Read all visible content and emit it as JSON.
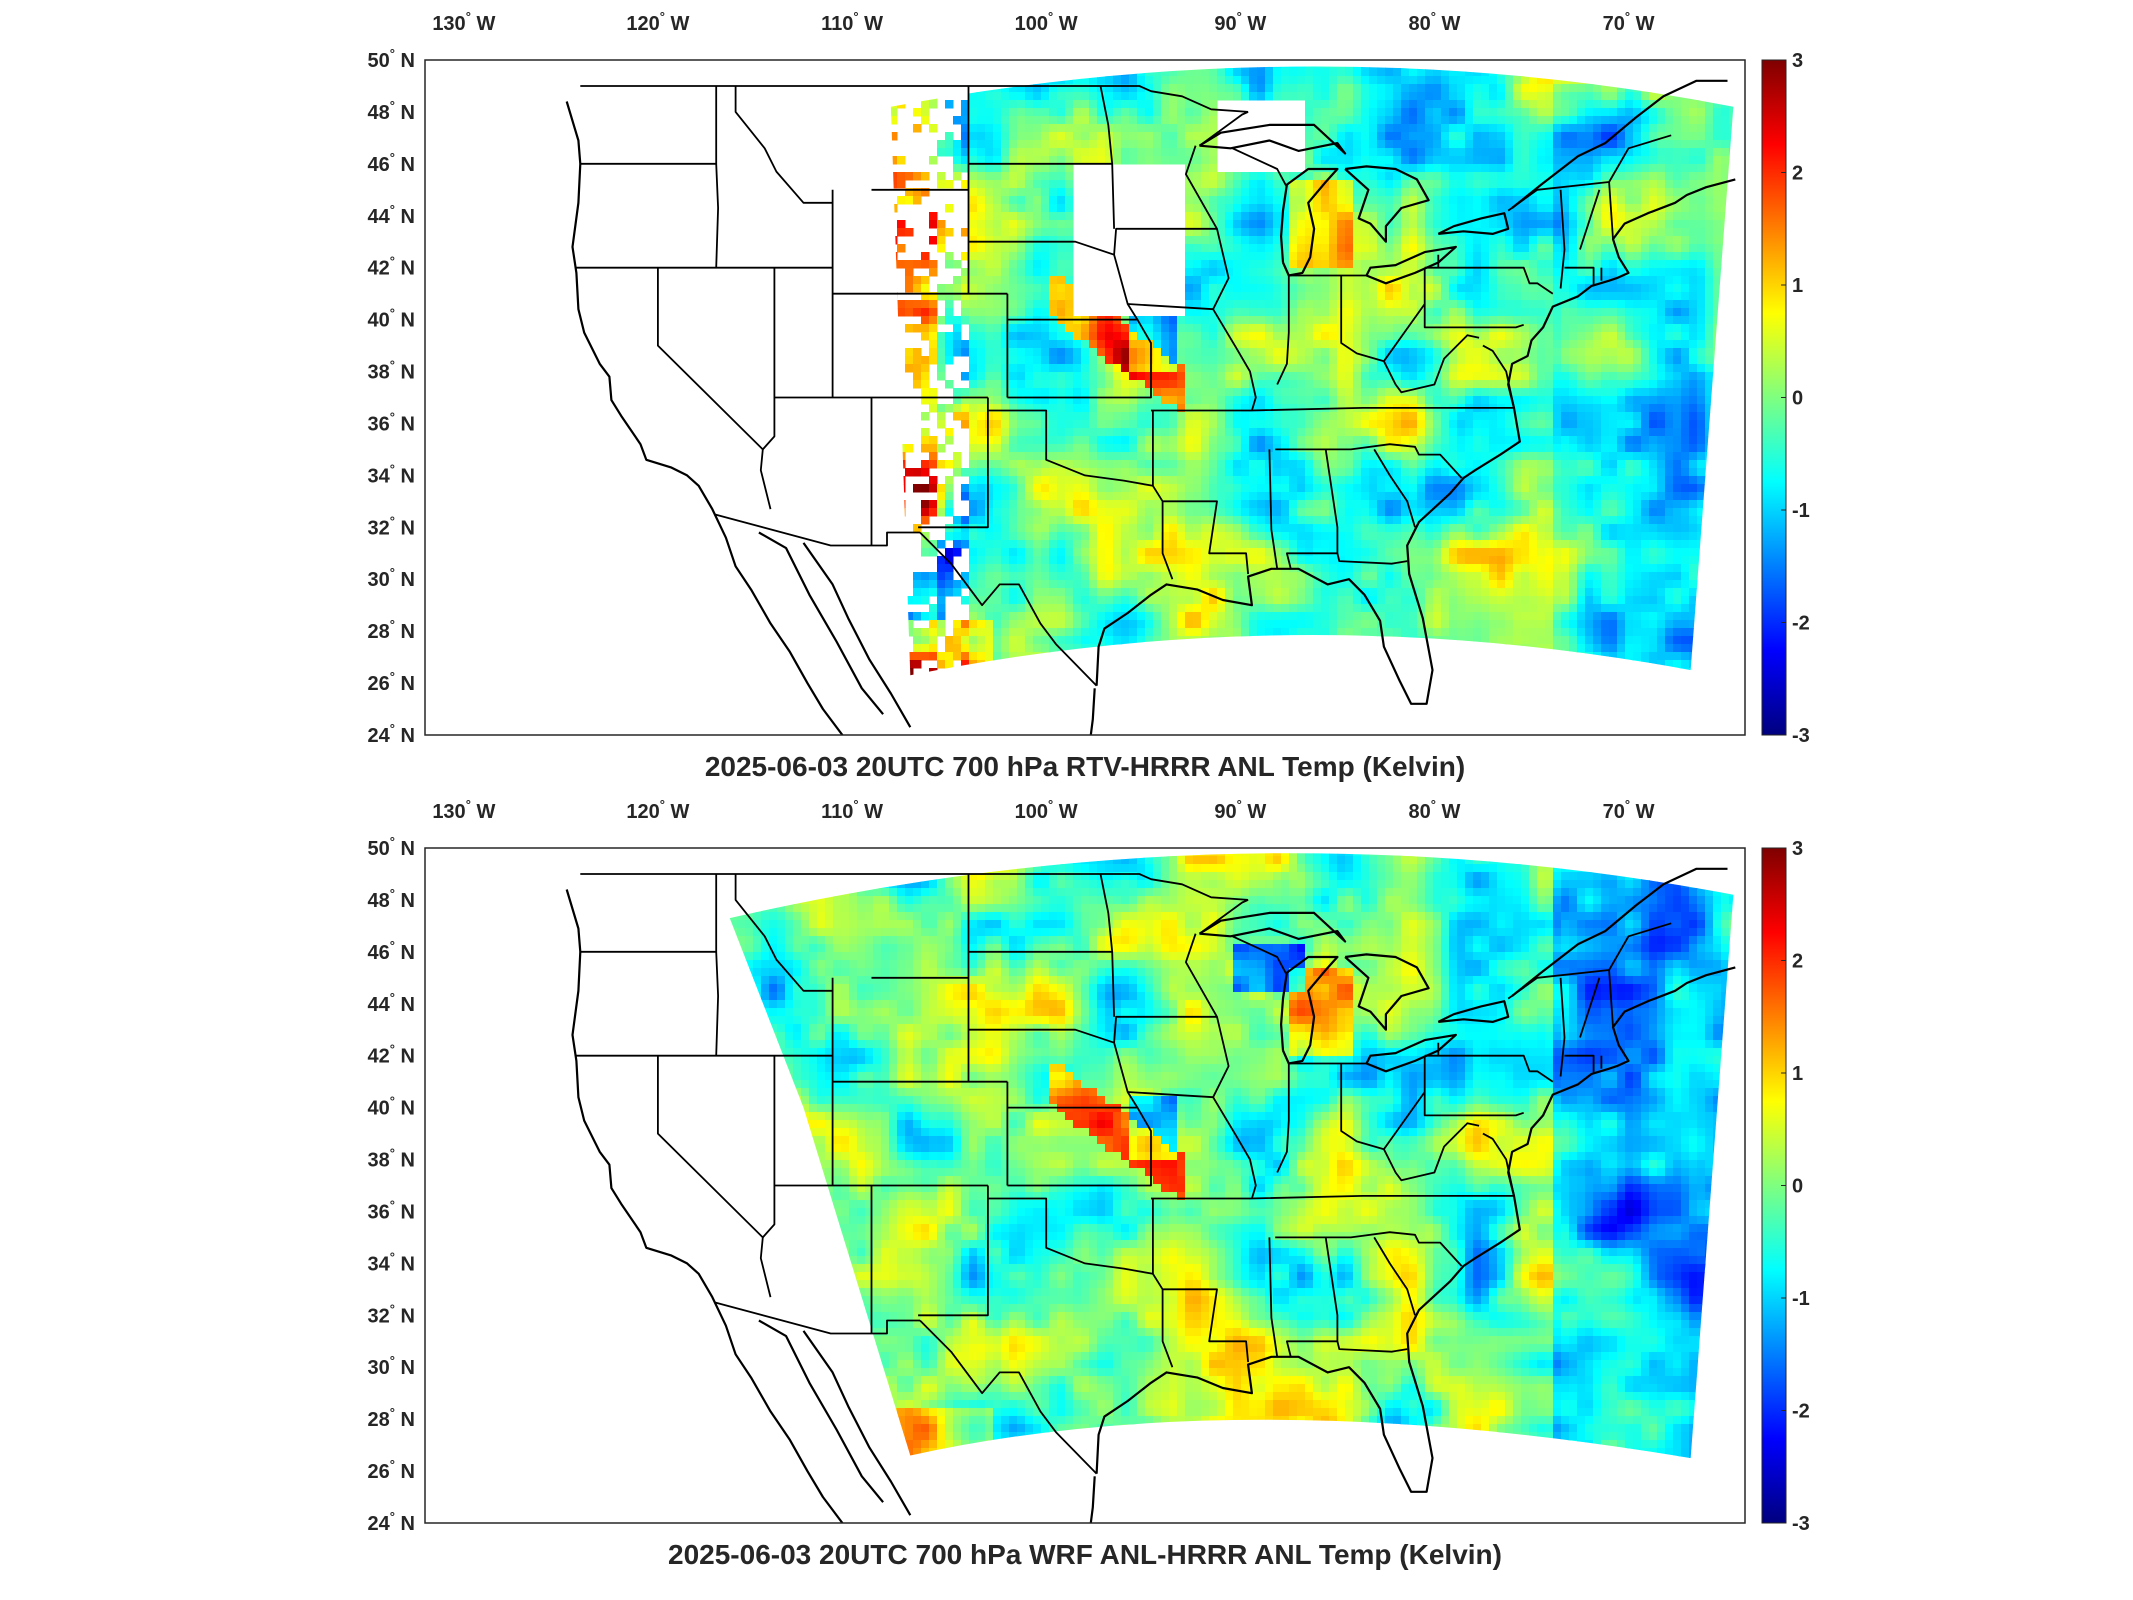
{
  "panels": [
    {
      "title": "2025-06-03 20UTC 700 hPa RTV-HRRR ANL Temp (Kelvin)",
      "field": "RTV-HRRR ANL minus HRRR ANL, 700 hPa temperature"
    },
    {
      "title": "2025-06-03 20UTC 700 hPa WRF ANL-HRRR ANL Temp (Kelvin)",
      "field": "WRF ANL minus HRRR ANL, 700 hPa temperature"
    }
  ],
  "map": {
    "lon_range": [
      -132,
      -64
    ],
    "lat_range": [
      24,
      50
    ],
    "lon_ticks": [
      {
        "value": -130,
        "deg": "130",
        "hemi": "W"
      },
      {
        "value": -120,
        "deg": "120",
        "hemi": "W"
      },
      {
        "value": -110,
        "deg": "110",
        "hemi": "W"
      },
      {
        "value": -100,
        "deg": "100",
        "hemi": "W"
      },
      {
        "value": -90,
        "deg": "90",
        "hemi": "W"
      },
      {
        "value": -80,
        "deg": "80",
        "hemi": "W"
      },
      {
        "value": -70,
        "deg": "70",
        "hemi": "W"
      }
    ],
    "lat_ticks": [
      {
        "value": 50,
        "deg": "50",
        "hemi": "N"
      },
      {
        "value": 48,
        "deg": "48",
        "hemi": "N"
      },
      {
        "value": 46,
        "deg": "46",
        "hemi": "N"
      },
      {
        "value": 44,
        "deg": "44",
        "hemi": "N"
      },
      {
        "value": 42,
        "deg": "42",
        "hemi": "N"
      },
      {
        "value": 40,
        "deg": "40",
        "hemi": "N"
      },
      {
        "value": 38,
        "deg": "38",
        "hemi": "N"
      },
      {
        "value": 36,
        "deg": "36",
        "hemi": "N"
      },
      {
        "value": 34,
        "deg": "34",
        "hemi": "N"
      },
      {
        "value": 32,
        "deg": "32",
        "hemi": "N"
      },
      {
        "value": 30,
        "deg": "30",
        "hemi": "N"
      },
      {
        "value": 28,
        "deg": "28",
        "hemi": "N"
      },
      {
        "value": 26,
        "deg": "26",
        "hemi": "N"
      },
      {
        "value": 24,
        "deg": "24",
        "hemi": "N"
      }
    ],
    "colorbar": {
      "min": -3,
      "max": 3,
      "ticks": [
        "3",
        "2",
        "1",
        "0",
        "-1",
        "-2",
        "-3"
      ],
      "colormap": "jet",
      "colors": [
        "#00007f",
        "#0000ff",
        "#007fff",
        "#00ffff",
        "#7fff7f",
        "#ffff00",
        "#ff7f00",
        "#ff0000",
        "#7f0000"
      ]
    },
    "field_colors": {
      "cyan": "#38d8e8",
      "green": "#8ff07a",
      "yellow": "#f0e24a",
      "orange": "#ff9a2a",
      "red": "#e0281c",
      "blue": "#2f7fe6"
    }
  }
}
